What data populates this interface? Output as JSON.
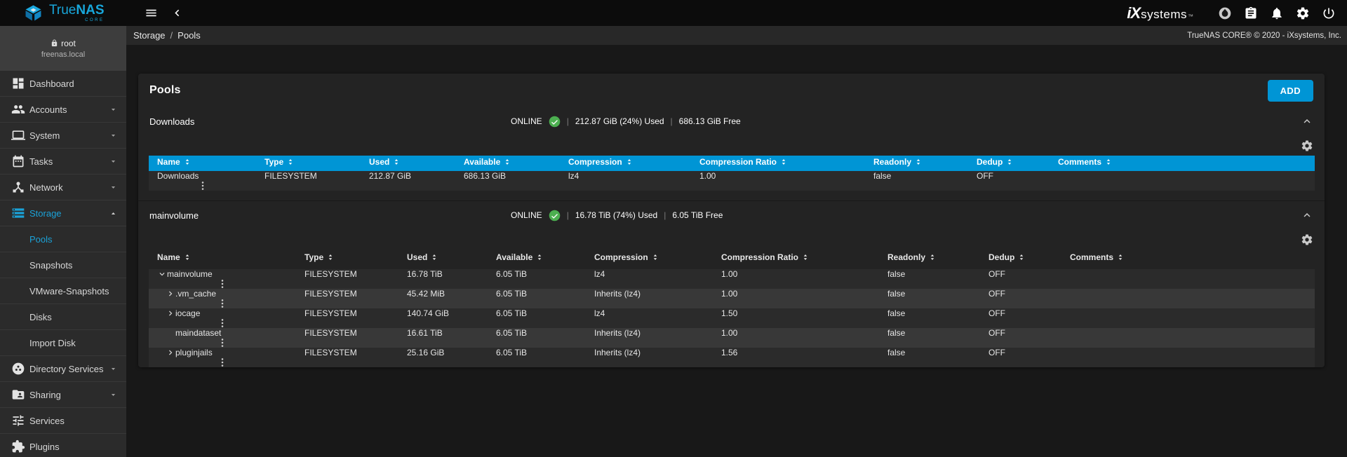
{
  "brand": {
    "name_regular": "True",
    "name_bold": "NAS",
    "sub": "CORE"
  },
  "topbar": {
    "ix": {
      "mark": "iX",
      "rest": "systems",
      "tm": "™"
    },
    "icons": [
      "truecommand-icon",
      "tasklist-icon",
      "bell-icon",
      "gear-icon",
      "power-icon"
    ],
    "menu_icon": "menu-icon",
    "back_icon": "back-icon"
  },
  "subbar": {
    "breadcrumb": [
      "Storage",
      "Pools"
    ],
    "separator": "/",
    "copyright": "TrueNAS CORE® © 2020 - iXsystems, Inc."
  },
  "sidebar": {
    "user": {
      "name": "root",
      "host": "freenas.local",
      "icon": "lock-icon"
    },
    "items": [
      {
        "label": "Dashboard",
        "icon": "dashboard-icon",
        "expandable": false
      },
      {
        "label": "Accounts",
        "icon": "accounts-icon",
        "expandable": true
      },
      {
        "label": "System",
        "icon": "system-icon",
        "expandable": true
      },
      {
        "label": "Tasks",
        "icon": "tasks-icon",
        "expandable": true
      },
      {
        "label": "Network",
        "icon": "network-icon",
        "expandable": true
      },
      {
        "label": "Storage",
        "icon": "storage-icon",
        "expandable": true,
        "expanded": true,
        "active": true
      },
      {
        "label": "Directory Services",
        "icon": "directory-services-icon",
        "expandable": true
      },
      {
        "label": "Sharing",
        "icon": "sharing-icon",
        "expandable": true
      },
      {
        "label": "Services",
        "icon": "services-icon",
        "expandable": false
      },
      {
        "label": "Plugins",
        "icon": "plugins-icon",
        "expandable": false
      }
    ],
    "storage_children": [
      {
        "label": "Pools",
        "active": true
      },
      {
        "label": "Snapshots",
        "active": false
      },
      {
        "label": "VMware-Snapshots",
        "active": false
      },
      {
        "label": "Disks",
        "active": false
      },
      {
        "label": "Import Disk",
        "active": false
      }
    ]
  },
  "main": {
    "title": "Pools",
    "add_label": "ADD",
    "status_separator": "|",
    "colors": {
      "accent": "#0095d5",
      "online_green": "#4caf50"
    },
    "pools": [
      {
        "name": "Downloads",
        "status": "ONLINE",
        "used": "212.87 GiB (24%) Used",
        "free": "686.13 GiB Free",
        "header_selected": true,
        "columns": [
          "Name",
          "Type",
          "Used",
          "Available",
          "Compression",
          "Compression Ratio",
          "Readonly",
          "Dedup",
          "Comments"
        ],
        "rows": [
          {
            "name": "Downloads",
            "chevron": null,
            "indent": 0,
            "type": "FILESYSTEM",
            "used": "212.87 GiB",
            "available": "686.13 GiB",
            "compression": "lz4",
            "compression_ratio": "1.00",
            "readonly": "false",
            "dedup": "OFF",
            "comments": ""
          }
        ]
      },
      {
        "name": "mainvolume",
        "status": "ONLINE",
        "used": "16.78 TiB (74%) Used",
        "free": "6.05 TiB Free",
        "header_selected": false,
        "columns": [
          "Name",
          "Type",
          "Used",
          "Available",
          "Compression",
          "Compression Ratio",
          "Readonly",
          "Dedup",
          "Comments"
        ],
        "rows": [
          {
            "name": "mainvolume",
            "chevron": "down",
            "indent": 0,
            "type": "FILESYSTEM",
            "used": "16.78 TiB",
            "available": "6.05 TiB",
            "compression": "lz4",
            "compression_ratio": "1.00",
            "readonly": "false",
            "dedup": "OFF",
            "comments": ""
          },
          {
            "name": ".vm_cache",
            "chevron": "right",
            "indent": 1,
            "type": "FILESYSTEM",
            "used": "45.42 MiB",
            "available": "6.05 TiB",
            "compression": "Inherits (lz4)",
            "compression_ratio": "1.00",
            "readonly": "false",
            "dedup": "OFF",
            "comments": ""
          },
          {
            "name": "iocage",
            "chevron": "right",
            "indent": 1,
            "type": "FILESYSTEM",
            "used": "140.74 GiB",
            "available": "6.05 TiB",
            "compression": "lz4",
            "compression_ratio": "1.50",
            "readonly": "false",
            "dedup": "OFF",
            "comments": ""
          },
          {
            "name": "maindataset",
            "chevron": null,
            "indent": 1,
            "type": "FILESYSTEM",
            "used": "16.61 TiB",
            "available": "6.05 TiB",
            "compression": "Inherits (lz4)",
            "compression_ratio": "1.00",
            "readonly": "false",
            "dedup": "OFF",
            "comments": ""
          },
          {
            "name": "pluginjails",
            "chevron": "right",
            "indent": 1,
            "type": "FILESYSTEM",
            "used": "25.16 GiB",
            "available": "6.05 TiB",
            "compression": "Inherits (lz4)",
            "compression_ratio": "1.56",
            "readonly": "false",
            "dedup": "OFF",
            "comments": ""
          }
        ]
      }
    ]
  }
}
